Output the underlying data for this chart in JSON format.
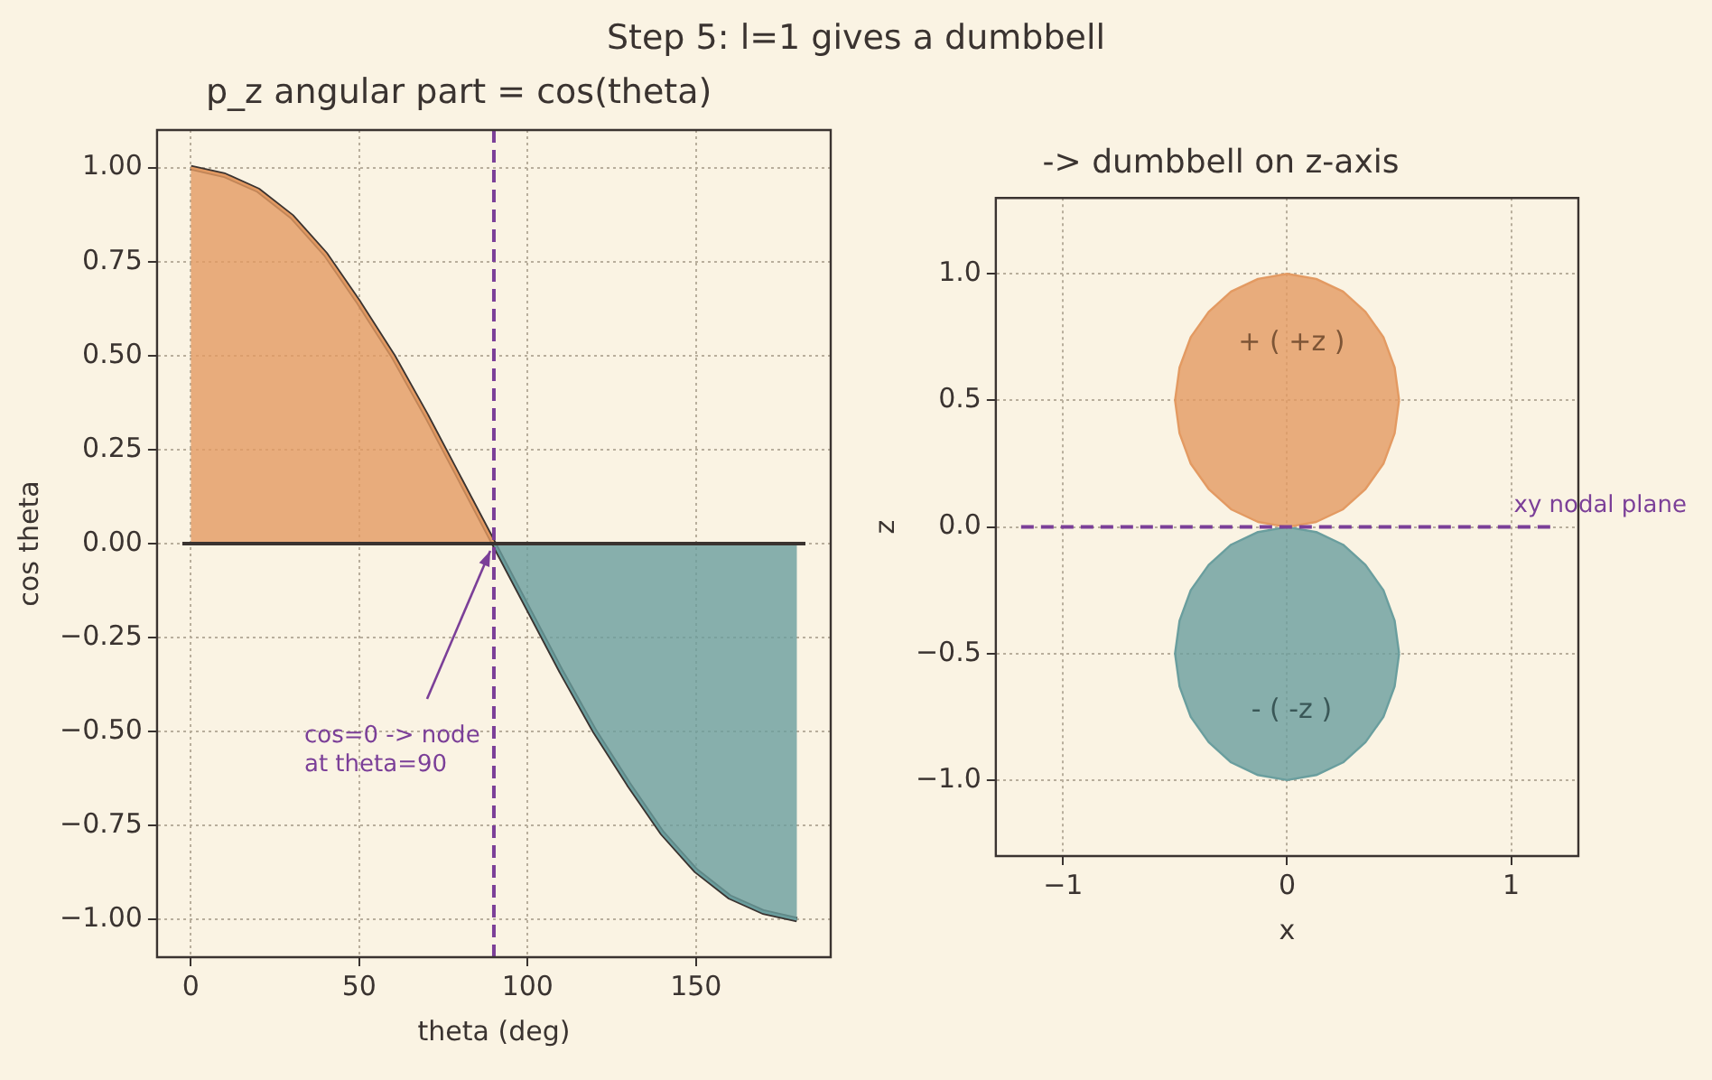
{
  "chart_data": [
    {
      "type": "line",
      "title": "Step 5: l=1 gives a dumbbell",
      "subtitle": "p_z angular part = cos(theta)",
      "xlabel": "theta (deg)",
      "ylabel": "cos theta",
      "xlim": [
        -10,
        190
      ],
      "xticks": [
        0,
        50,
        100,
        150
      ],
      "ylim": [
        -1.1,
        1.1
      ],
      "yticks": [
        {
          "value": -1,
          "label": "−1.00"
        },
        {
          "value": -0.75,
          "label": "−0.75"
        },
        {
          "value": -0.5,
          "label": "−0.50"
        },
        {
          "value": -0.25,
          "label": "−0.25"
        },
        {
          "value": 0,
          "label": "0.00"
        },
        {
          "value": 0.25,
          "label": "0.25"
        },
        {
          "value": 0.5,
          "label": "0.50"
        },
        {
          "value": 0.75,
          "label": "0.75"
        },
        {
          "value": 1,
          "label": "1.00"
        }
      ],
      "grid": true,
      "marker": "none",
      "series": [
        {
          "type": "area",
          "color": "#e39a62",
          "x": [
            0,
            10,
            20,
            30,
            40,
            50,
            60,
            70,
            80,
            90
          ],
          "values": [
            1,
            0.98,
            0.94,
            0.87,
            0.77,
            0.64,
            0.5,
            0.34,
            0.17,
            0
          ]
        },
        {
          "type": "area",
          "color": "#6a9e9e",
          "x": [
            90,
            100,
            110,
            120,
            130,
            140,
            150,
            160,
            170,
            180
          ],
          "values": [
            0,
            -0.17,
            -0.34,
            -0.5,
            -0.64,
            -0.77,
            -0.87,
            -0.94,
            -0.98,
            -1
          ]
        },
        {
          "type": "line",
          "color": "#3a3330",
          "x": [
            0,
            10,
            20,
            30,
            40,
            50,
            60,
            70,
            80,
            90,
            100,
            110,
            120,
            130,
            140,
            150,
            160,
            170,
            180
          ],
          "values": [
            1,
            0.98,
            0.94,
            0.87,
            0.77,
            0.64,
            0.5,
            0.34,
            0.17,
            0,
            -0.17,
            -0.34,
            -0.5,
            -0.64,
            -0.77,
            -0.87,
            -0.94,
            -0.98,
            -1
          ]
        }
      ],
      "ref_lines": [
        {
          "axis": "x",
          "value": 90,
          "color": "#7b3f98",
          "line_style": "dashed"
        },
        {
          "axis": "y",
          "value": 0,
          "color": "#3a3330",
          "line_style": "solid"
        }
      ],
      "annotations": [
        {
          "text": "cos=0 -> node\nat theta=90",
          "x": 90,
          "y": 0
        }
      ]
    },
    {
      "type": "area",
      "title": "-> dumbbell on z-axis",
      "xlabel": "x",
      "ylabel": "z",
      "xlim": [
        -1.3,
        1.3
      ],
      "xticks": [
        {
          "value": -1,
          "label": "−1"
        },
        0,
        1
      ],
      "ylim": [
        -1.3,
        1.3
      ],
      "yticks": [
        {
          "value": -1,
          "label": "−1.0"
        },
        {
          "value": -0.5,
          "label": "−0.5"
        },
        {
          "value": 0,
          "label": "0.0"
        },
        {
          "value": 0.5,
          "label": "0.5"
        },
        {
          "value": 1,
          "label": "1.0"
        }
      ],
      "grid": true,
      "marker": "none",
      "series": [
        {
          "color": "#e39a62",
          "x": [
            0.5,
            0.48,
            0.43,
            0.35,
            0.25,
            0.13,
            0,
            -0.13,
            -0.25,
            -0.35,
            -0.43,
            -0.48,
            -0.5,
            -0.48,
            -0.43,
            -0.35,
            -0.25,
            -0.13,
            0,
            0.13,
            0.25,
            0.35,
            0.43,
            0.48,
            0.5
          ],
          "values": [
            0.5,
            0.63,
            0.75,
            0.85,
            0.93,
            0.98,
            1,
            0.98,
            0.93,
            0.85,
            0.75,
            0.63,
            0.5,
            0.37,
            0.25,
            0.15,
            0.07,
            0.02,
            0,
            0.02,
            0.07,
            0.15,
            0.25,
            0.37,
            0.5
          ]
        },
        {
          "color": "#6a9e9e",
          "x": [
            0.5,
            0.48,
            0.43,
            0.35,
            0.25,
            0.13,
            0,
            -0.13,
            -0.25,
            -0.35,
            -0.43,
            -0.48,
            -0.5,
            -0.48,
            -0.43,
            -0.35,
            -0.25,
            -0.13,
            0,
            0.13,
            0.25,
            0.35,
            0.43,
            0.48,
            0.5
          ],
          "values": [
            -0.5,
            -0.37,
            -0.25,
            -0.15,
            -0.07,
            -0.02,
            0,
            -0.02,
            -0.07,
            -0.15,
            -0.25,
            -0.37,
            -0.5,
            -0.63,
            -0.75,
            -0.85,
            -0.93,
            -0.98,
            -1,
            -0.98,
            -0.93,
            -0.85,
            -0.75,
            -0.63,
            -0.5
          ]
        }
      ],
      "ref_lines": [
        {
          "axis": "y",
          "value": 0,
          "label": "xy nodal plane",
          "color": "#7b3f98",
          "line_style": "dashed"
        }
      ],
      "annotations": [
        "+ ( +z )",
        "- ( -z )"
      ]
    }
  ]
}
